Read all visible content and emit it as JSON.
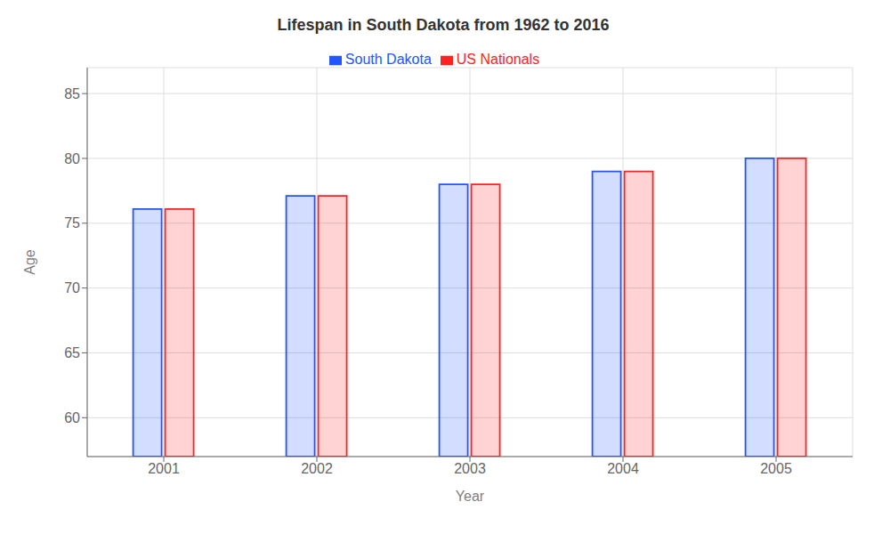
{
  "chart_data": {
    "type": "bar",
    "title": "Lifespan in South Dakota from 1962 to 2016",
    "xlabel": "Year",
    "ylabel": "Age",
    "categories": [
      "2001",
      "2002",
      "2003",
      "2004",
      "2005"
    ],
    "series": [
      {
        "name": "South Dakota",
        "color": "#2255ff",
        "values": [
          76.1,
          77.1,
          78.0,
          79.0,
          80.0
        ]
      },
      {
        "name": "US Nationals",
        "color": "#ff2222",
        "values": [
          76.1,
          77.1,
          78.0,
          79.0,
          80.0
        ]
      }
    ],
    "ylim": [
      57,
      87
    ],
    "yticks": [
      60,
      65,
      70,
      75,
      80,
      85
    ],
    "grid": true,
    "legend": "top"
  }
}
